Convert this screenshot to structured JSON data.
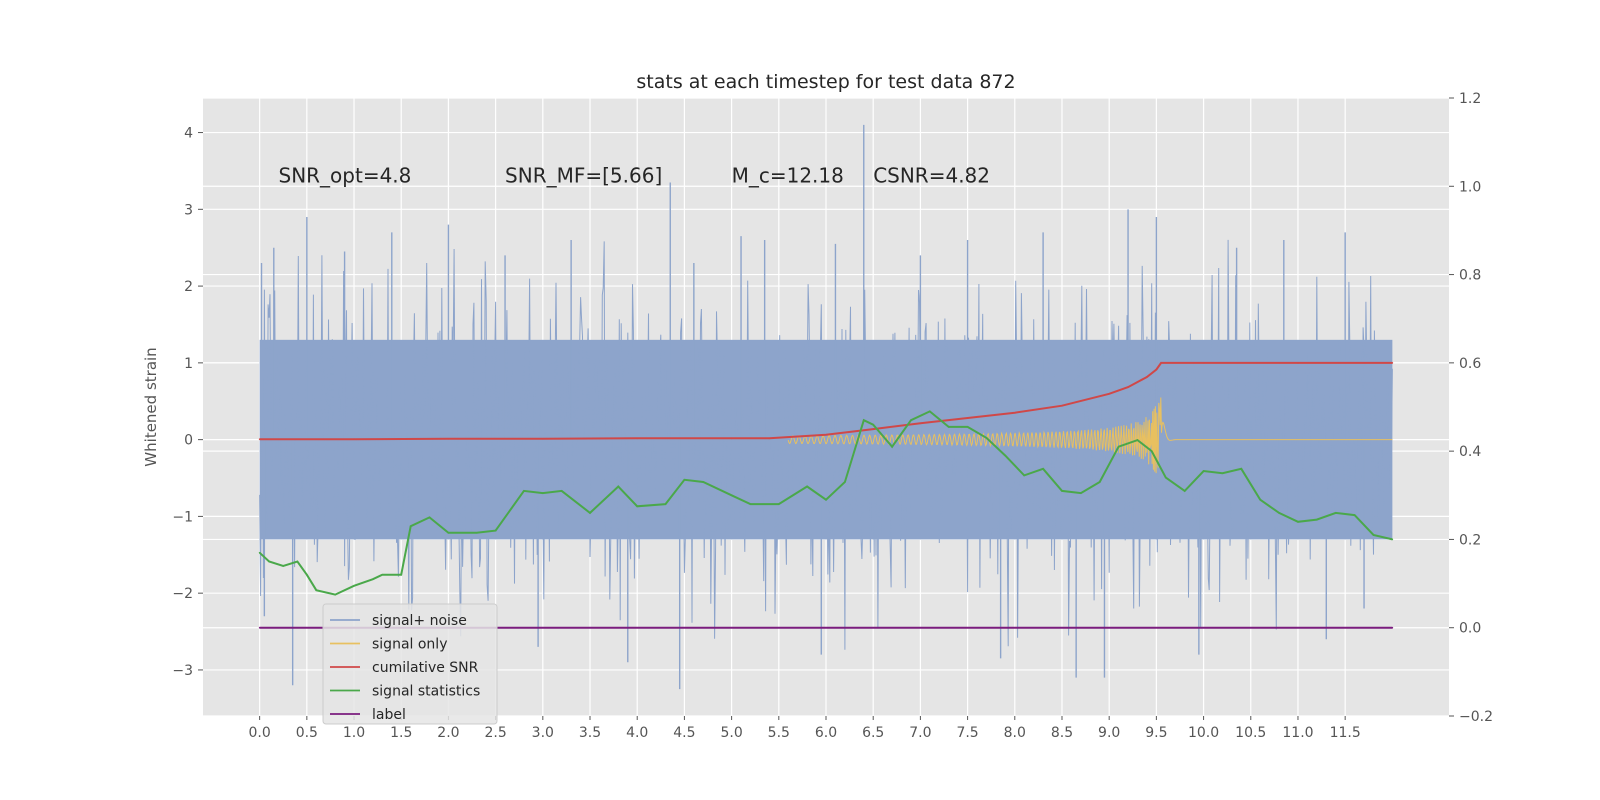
{
  "chart_data": {
    "type": "line",
    "title": "stats at each timestep for test data 872",
    "ylabel": "Whitened strain",
    "xlabel": "",
    "xlim": [
      -0.6,
      12.6
    ],
    "ylim_left": [
      -3.6,
      4.45
    ],
    "ylim_right": [
      -0.2,
      1.2
    ],
    "grid": true,
    "legend_position": "lower-left",
    "x_ticks": [
      "0.0",
      "0.5",
      "1.0",
      "1.5",
      "2.0",
      "2.5",
      "3.0",
      "3.5",
      "4.0",
      "4.5",
      "5.0",
      "5.5",
      "6.0",
      "6.5",
      "7.0",
      "7.5",
      "8.0",
      "8.5",
      "9.0",
      "9.5",
      "10.0",
      "10.5",
      "11.0",
      "11.5"
    ],
    "y_left_ticks": [
      "4",
      "3",
      "2",
      "1",
      "0",
      "−1",
      "−2",
      "−3"
    ],
    "y_right_ticks": [
      "1.2",
      "1.0",
      "0.8",
      "0.6",
      "0.4",
      "0.2",
      "0.0",
      "−0.2"
    ],
    "annotations": [
      {
        "text": "SNR_opt=4.8",
        "x": 0.2,
        "y": 3.35
      },
      {
        "text": "SNR_MF=[5.66]",
        "x": 2.6,
        "y": 3.35
      },
      {
        "text": "M_c=12.18",
        "x": 5.0,
        "y": 3.35
      },
      {
        "text": "CSNR=4.82",
        "x": 6.5,
        "y": 3.35
      }
    ],
    "series": [
      {
        "name": "signal+ noise",
        "axis": "left",
        "color": "#8da4cb",
        "envelope": {
          "x_start": 0.0,
          "x_end": 12.0,
          "dense_low": -1.3,
          "dense_high": 1.3,
          "typical_peak": 2.2
        },
        "spikes": [
          {
            "x": 0.02,
            "y": 2.3
          },
          {
            "x": 0.05,
            "y": -2.3
          },
          {
            "x": 0.15,
            "y": 2.5
          },
          {
            "x": 0.35,
            "y": -3.2
          },
          {
            "x": 0.5,
            "y": 2.9
          },
          {
            "x": 0.9,
            "y": 2.45
          },
          {
            "x": 1.4,
            "y": 2.7
          },
          {
            "x": 2.0,
            "y": 2.8
          },
          {
            "x": 2.6,
            "y": 2.4
          },
          {
            "x": 2.95,
            "y": -2.7
          },
          {
            "x": 3.3,
            "y": 2.6
          },
          {
            "x": 3.9,
            "y": -2.9
          },
          {
            "x": 4.35,
            "y": 3.35
          },
          {
            "x": 4.45,
            "y": -3.25
          },
          {
            "x": 4.6,
            "y": 2.3
          },
          {
            "x": 5.1,
            "y": 2.65
          },
          {
            "x": 5.35,
            "y": 2.6
          },
          {
            "x": 5.95,
            "y": -2.8
          },
          {
            "x": 6.1,
            "y": 2.55
          },
          {
            "x": 6.4,
            "y": 4.1
          },
          {
            "x": 7.0,
            "y": 2.4
          },
          {
            "x": 7.5,
            "y": 2.6
          },
          {
            "x": 7.85,
            "y": -2.85
          },
          {
            "x": 8.3,
            "y": 2.7
          },
          {
            "x": 8.65,
            "y": -3.1
          },
          {
            "x": 8.95,
            "y": -3.1
          },
          {
            "x": 9.2,
            "y": 3.0
          },
          {
            "x": 9.5,
            "y": 2.9
          },
          {
            "x": 9.95,
            "y": -2.8
          },
          {
            "x": 10.35,
            "y": 2.5
          },
          {
            "x": 10.85,
            "y": 2.6
          },
          {
            "x": 11.3,
            "y": -2.6
          },
          {
            "x": 11.5,
            "y": 2.7
          },
          {
            "x": 11.7,
            "y": -2.2
          }
        ]
      },
      {
        "name": "signal only",
        "axis": "left",
        "color": "#e8c060",
        "chirp": {
          "x_start": 5.6,
          "x_peak": 9.55,
          "x_end": 12.0,
          "peak_amplitude": 0.7
        }
      },
      {
        "name": "cumilative SNR",
        "axis": "right",
        "color": "#d04848",
        "x": [
          0.0,
          1.0,
          2.0,
          3.0,
          4.0,
          5.0,
          5.4,
          6.0,
          6.5,
          7.0,
          7.5,
          8.0,
          8.5,
          9.0,
          9.2,
          9.4,
          9.5,
          9.55,
          10.0,
          11.0,
          12.0
        ],
        "values": [
          0.427,
          0.427,
          0.428,
          0.428,
          0.429,
          0.429,
          0.429,
          0.437,
          0.45,
          0.463,
          0.475,
          0.487,
          0.503,
          0.53,
          0.545,
          0.568,
          0.585,
          0.6,
          0.6,
          0.6,
          0.6
        ]
      },
      {
        "name": "signal statistics",
        "axis": "right",
        "color": "#4aa84a",
        "x": [
          0.0,
          0.1,
          0.25,
          0.4,
          0.5,
          0.6,
          0.8,
          1.0,
          1.2,
          1.3,
          1.5,
          1.6,
          1.8,
          2.0,
          2.3,
          2.5,
          2.8,
          3.0,
          3.2,
          3.5,
          3.8,
          4.0,
          4.3,
          4.5,
          4.7,
          5.0,
          5.2,
          5.5,
          5.8,
          6.0,
          6.2,
          6.4,
          6.5,
          6.7,
          6.9,
          7.1,
          7.3,
          7.5,
          7.7,
          7.9,
          8.1,
          8.3,
          8.5,
          8.7,
          8.9,
          9.1,
          9.3,
          9.45,
          9.6,
          9.8,
          10.0,
          10.2,
          10.4,
          10.6,
          10.8,
          11.0,
          11.2,
          11.4,
          11.6,
          11.8,
          12.0
        ],
        "values": [
          0.17,
          0.15,
          0.14,
          0.15,
          0.12,
          0.085,
          0.075,
          0.095,
          0.11,
          0.12,
          0.12,
          0.23,
          0.25,
          0.215,
          0.215,
          0.22,
          0.31,
          0.305,
          0.31,
          0.26,
          0.32,
          0.275,
          0.28,
          0.335,
          0.33,
          0.3,
          0.28,
          0.28,
          0.32,
          0.29,
          0.33,
          0.47,
          0.46,
          0.41,
          0.47,
          0.49,
          0.455,
          0.455,
          0.43,
          0.39,
          0.345,
          0.36,
          0.31,
          0.305,
          0.33,
          0.41,
          0.425,
          0.4,
          0.34,
          0.31,
          0.355,
          0.35,
          0.36,
          0.29,
          0.26,
          0.24,
          0.245,
          0.26,
          0.255,
          0.21,
          0.2
        ]
      },
      {
        "name": "label",
        "axis": "right",
        "color": "#7b1d7e",
        "x": [
          0.0,
          12.0
        ],
        "values": [
          0.0,
          0.0
        ]
      }
    ]
  }
}
